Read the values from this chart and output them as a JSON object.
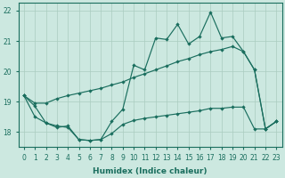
{
  "xlabel": "Humidex (Indice chaleur)",
  "bg_color": "#cce8e0",
  "line_color": "#1a6e5e",
  "grid_color": "#aaccbf",
  "xlim": [
    -0.5,
    23.5
  ],
  "ylim": [
    17.5,
    22.25
  ],
  "yticks": [
    18,
    19,
    20,
    21,
    22
  ],
  "xticks": [
    0,
    1,
    2,
    3,
    4,
    5,
    6,
    7,
    8,
    9,
    10,
    11,
    12,
    13,
    14,
    15,
    16,
    17,
    18,
    19,
    20,
    21,
    22,
    23
  ],
  "upper_y": [
    19.2,
    18.85,
    18.3,
    18.15,
    18.2,
    17.75,
    17.72,
    17.75,
    18.35,
    18.75,
    20.2,
    20.05,
    21.1,
    21.05,
    21.55,
    20.9,
    21.15,
    21.95,
    21.1,
    21.15,
    20.65,
    20.05,
    18.1,
    18.35
  ],
  "mid_y": [
    19.2,
    18.95,
    18.95,
    19.1,
    19.2,
    19.28,
    19.36,
    19.44,
    19.55,
    19.65,
    19.8,
    19.92,
    20.05,
    20.18,
    20.32,
    20.42,
    20.55,
    20.65,
    20.72,
    20.82,
    20.65,
    20.05,
    18.1,
    18.35
  ],
  "lower_y": [
    19.2,
    18.5,
    18.3,
    18.2,
    18.15,
    17.75,
    17.72,
    17.75,
    17.95,
    18.25,
    18.38,
    18.45,
    18.5,
    18.55,
    18.6,
    18.65,
    18.7,
    18.78,
    18.78,
    18.82,
    18.82,
    18.1,
    18.1,
    18.35
  ],
  "xlabel_fontsize": 6.5,
  "tick_fontsize": 5.5
}
